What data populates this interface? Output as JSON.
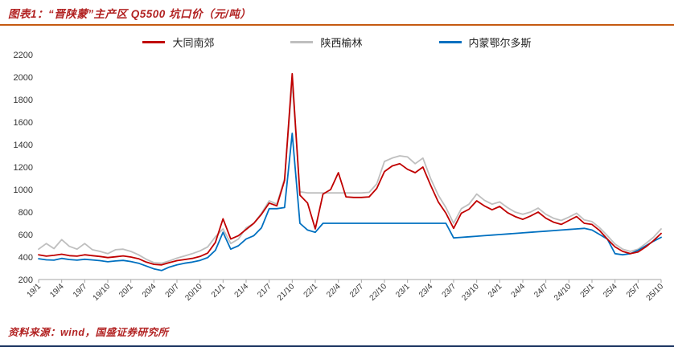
{
  "figure": {
    "title": "图表1：“晋陕蒙”主产区 Q5500 坑口价（元/吨）",
    "source_prefix": "资料来源：",
    "source_text": "wind，国盛证券研究所"
  },
  "colors": {
    "accent_red": "#B22222",
    "top_rule": "#C55A11",
    "bottom_rule": "#1F3864",
    "axis_text": "#333333",
    "axis_line": "#A6A6A6"
  },
  "chart_data": {
    "type": "line",
    "title": "“晋陕蒙”主产区 Q5500 坑口价（元/吨）",
    "ylabel": "",
    "xlabel": "",
    "ylim": [
      200,
      2200
    ],
    "ytick_step": 200,
    "xtick_every": 3,
    "grid": false,
    "legend_position": "top",
    "x": [
      "19/1",
      "19/2",
      "19/3",
      "19/4",
      "19/5",
      "19/6",
      "19/7",
      "19/8",
      "19/9",
      "19/10",
      "19/11",
      "19/12",
      "20/1",
      "20/2",
      "20/3",
      "20/4",
      "20/5",
      "20/6",
      "20/7",
      "20/8",
      "20/9",
      "20/10",
      "20/11",
      "20/12",
      "21/1",
      "21/2",
      "21/3",
      "21/4",
      "21/5",
      "21/6",
      "21/7",
      "21/8",
      "21/9",
      "21/10",
      "21/11",
      "21/12",
      "22/1",
      "22/2",
      "22/3",
      "22/4",
      "22/5",
      "22/6",
      "22/7",
      "22/8",
      "22/9",
      "22/10",
      "22/11",
      "22/12",
      "23/1",
      "23/2",
      "23/3",
      "23/4",
      "23/5",
      "23/6",
      "23/7",
      "23/8",
      "23/9",
      "23/10",
      "23/11",
      "23/12",
      "24/1",
      "24/2",
      "24/3",
      "24/4",
      "24/5",
      "24/6",
      "24/7",
      "24/8",
      "24/9",
      "24/10",
      "24/11",
      "24/12",
      "25/1",
      "25/2",
      "25/3",
      "25/4",
      "25/5",
      "25/6",
      "25/7",
      "25/8",
      "25/9",
      "25/10"
    ],
    "series": [
      {
        "name": "大同南郊",
        "color": "#C00000",
        "values": [
          420,
          408,
          415,
          425,
          412,
          408,
          420,
          412,
          405,
          395,
          402,
          410,
          400,
          385,
          355,
          335,
          330,
          350,
          368,
          378,
          388,
          405,
          435,
          530,
          740,
          560,
          590,
          645,
          700,
          780,
          880,
          855,
          1080,
          2030,
          950,
          880,
          650,
          960,
          1000,
          1150,
          935,
          930,
          930,
          935,
          1010,
          1160,
          1210,
          1230,
          1180,
          1150,
          1200,
          1040,
          890,
          790,
          655,
          790,
          825,
          900,
          855,
          820,
          850,
          795,
          760,
          735,
          765,
          800,
          745,
          710,
          690,
          725,
          760,
          700,
          690,
          635,
          560,
          490,
          450,
          430,
          445,
          490,
          545,
          610
        ]
      },
      {
        "name": "陕西榆林",
        "color": "#BFBFBF",
        "values": [
          470,
          520,
          475,
          555,
          495,
          470,
          520,
          465,
          450,
          430,
          465,
          470,
          450,
          420,
          380,
          350,
          345,
          365,
          390,
          410,
          430,
          455,
          490,
          580,
          650,
          520,
          560,
          660,
          700,
          790,
          900,
          870,
          1100,
          1950,
          980,
          970,
          970,
          970,
          970,
          970,
          970,
          970,
          970,
          975,
          1050,
          1250,
          1280,
          1300,
          1290,
          1230,
          1280,
          1100,
          950,
          840,
          700,
          830,
          870,
          960,
          905,
          870,
          890,
          840,
          800,
          780,
          800,
          835,
          780,
          745,
          725,
          755,
          790,
          730,
          715,
          660,
          590,
          515,
          470,
          450,
          470,
          520,
          575,
          650
        ]
      },
      {
        "name": "内蒙鄂尔多斯",
        "color": "#0070C0",
        "values": [
          385,
          375,
          372,
          388,
          378,
          372,
          380,
          374,
          368,
          358,
          365,
          370,
          360,
          345,
          320,
          295,
          280,
          310,
          330,
          345,
          355,
          370,
          395,
          460,
          620,
          470,
          500,
          560,
          590,
          660,
          830,
          830,
          840,
          1500,
          700,
          640,
          620,
          700,
          700,
          700,
          700,
          700,
          700,
          700,
          700,
          700,
          700,
          700,
          700,
          700,
          700,
          700,
          700,
          700,
          570,
          575,
          580,
          585,
          590,
          595,
          600,
          605,
          610,
          615,
          620,
          625,
          630,
          635,
          640,
          645,
          650,
          655,
          640,
          600,
          560,
          430,
          420,
          430,
          460,
          500,
          540,
          575
        ]
      }
    ],
    "draw_order": [
      1,
      2,
      0
    ]
  }
}
